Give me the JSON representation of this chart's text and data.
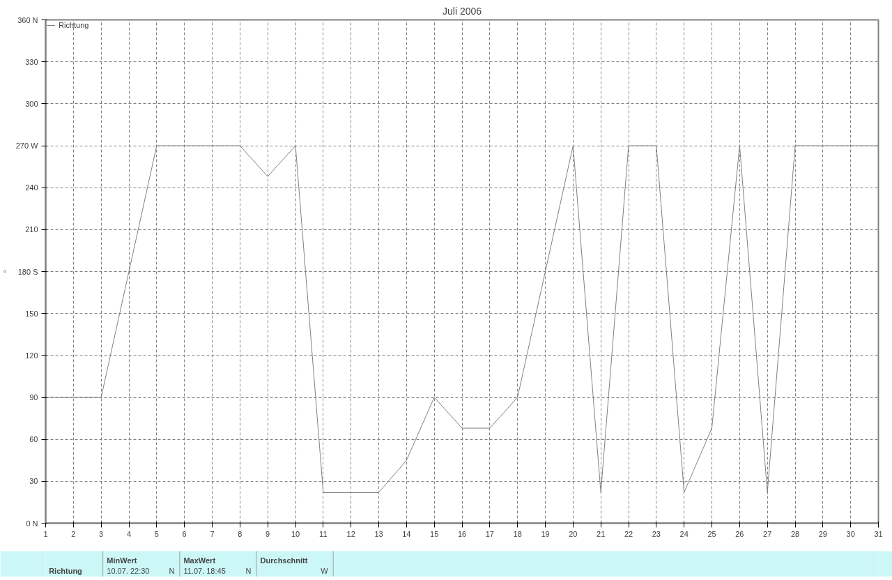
{
  "chart_data": {
    "type": "line",
    "title": "Juli 2006",
    "ylabel": "°",
    "x": [
      1,
      2,
      3,
      4,
      5,
      6,
      7,
      8,
      9,
      10,
      11,
      12,
      13,
      14,
      15,
      16,
      17,
      18,
      19,
      20,
      21,
      22,
      23,
      24,
      25,
      26,
      27,
      28,
      29,
      30,
      31
    ],
    "series": [
      {
        "name": "Richtung",
        "color": "#808080",
        "values": [
          90,
          90,
          90,
          180,
          270,
          270,
          270,
          270,
          248,
          270,
          22,
          22,
          22,
          45,
          90,
          68,
          68,
          90,
          180,
          270,
          22,
          270,
          270,
          22,
          68,
          270,
          22,
          270,
          270,
          270,
          270
        ]
      }
    ],
    "xlim": [
      1,
      31
    ],
    "xticks": [
      1,
      2,
      3,
      4,
      5,
      6,
      7,
      8,
      9,
      10,
      11,
      12,
      13,
      14,
      15,
      16,
      17,
      18,
      19,
      20,
      21,
      22,
      23,
      24,
      25,
      26,
      27,
      28,
      29,
      30,
      31
    ],
    "ylim": [
      0,
      360
    ],
    "yticks": [
      {
        "value": 0,
        "label": "0 N"
      },
      30,
      60,
      90,
      120,
      150,
      {
        "value": 180,
        "label": "180 S"
      },
      210,
      240,
      {
        "value": 270,
        "label": "270 W"
      },
      300,
      330,
      {
        "value": 360,
        "label": "360 N"
      }
    ],
    "grid": true,
    "legend": "top left",
    "marker": "none",
    "line_style": "solid",
    "annotations": [
      "Richtung",
      "MinWert",
      "10.07.  22:30",
      "N",
      "MaxWert",
      "11.07.  18:45",
      "N",
      "Durchschnitt",
      "W"
    ]
  }
}
